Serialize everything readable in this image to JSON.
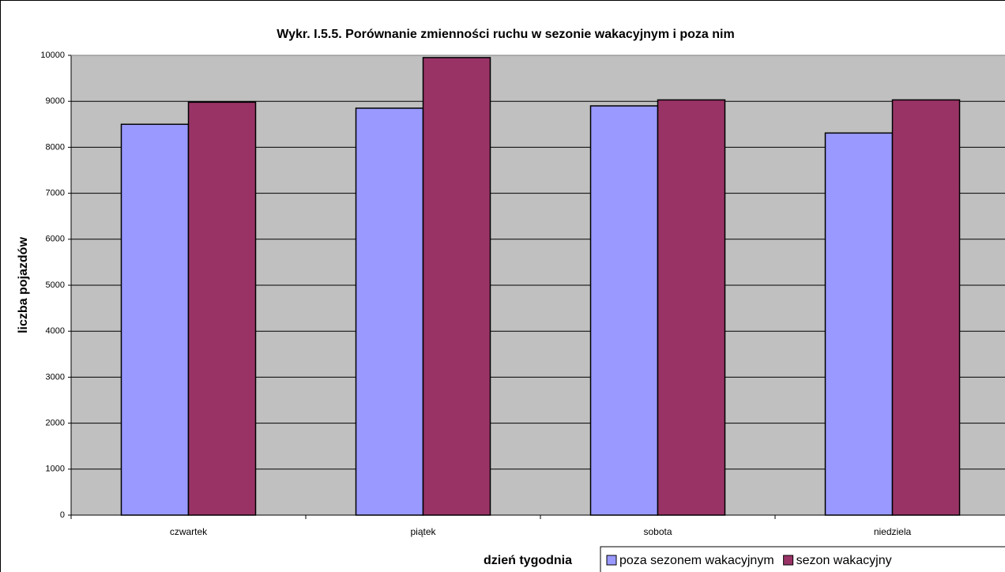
{
  "chart_data": {
    "type": "bar",
    "title": "Wykr. I.5.5. Porównanie zmienności ruchu w sezonie wakacyjnym i poza nim",
    "x_label": "dzień tygodnia",
    "y_label": "liczba pojazdów",
    "categories": [
      "czwartek",
      "piątek",
      "sobota",
      "niedziela"
    ],
    "series": [
      {
        "name": "poza sezonem wakacyjnym",
        "color": "#9999ff",
        "values": [
          8500,
          8850,
          8900,
          8310
        ]
      },
      {
        "name": "sezon wakacyjny",
        "color": "#993366",
        "values": [
          8980,
          9950,
          9030,
          9030
        ]
      }
    ],
    "ylim": [
      0,
      10000
    ],
    "yticks": [
      0,
      1000,
      2000,
      3000,
      4000,
      5000,
      6000,
      7000,
      8000,
      9000,
      10000
    ],
    "grid": true,
    "legend": "bottom-right"
  }
}
